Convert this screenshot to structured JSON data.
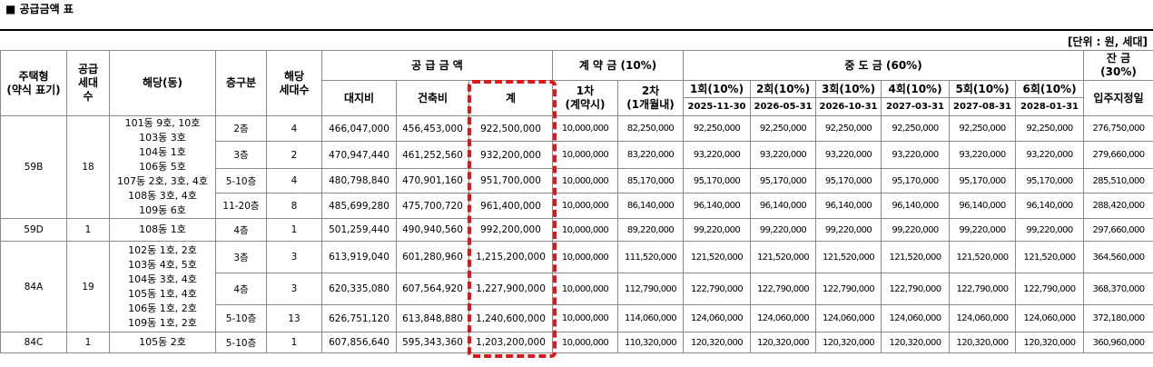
{
  "title": "■ 공급금액 표",
  "unit": "[단위 : 원, 세대]",
  "header": {
    "type": "주택형\n(약식 표기)",
    "supply": "공급\n세대\n수",
    "dong": "해당(동)",
    "floor": "층구분",
    "units": "해당\n세대수",
    "price_group": "공 급 금 액",
    "deposit_group": "계 약 금 (10%)",
    "interim_group": "중 도 금 (60%)",
    "balance_group": "잔 금\n(30%)",
    "land": "대지비",
    "building": "건축비",
    "total": "계",
    "deposit1": "1차\n(계약시)",
    "deposit2": "2차\n(1개월내)",
    "interim": [
      {
        "label": "1회(10%)",
        "date": "2025-11-30"
      },
      {
        "label": "2회(10%)",
        "date": "2026-05-31"
      },
      {
        "label": "3회(10%)",
        "date": "2026-10-31"
      },
      {
        "label": "4회(10%)",
        "date": "2027-03-31"
      },
      {
        "label": "5회(10%)",
        "date": "2027-08-31"
      },
      {
        "label": "6회(10%)",
        "date": "2028-01-31"
      }
    ],
    "balance": "입주지정일"
  },
  "groups": [
    {
      "type": "59B",
      "supply": "18",
      "dong": [
        "101동 9호, 10호",
        "103동 3호",
        "104동 1호",
        "106동 5호",
        "107동 2호, 3호, 4호",
        "108동 3호, 4호",
        "109동 6호"
      ],
      "rows": [
        [
          "2층",
          "4",
          "466,047,000",
          "456,453,000",
          "922,500,000",
          "10,000,000",
          "82,250,000",
          "92,250,000",
          "92,250,000",
          "92,250,000",
          "92,250,000",
          "92,250,000",
          "92,250,000",
          "276,750,000"
        ],
        [
          "3층",
          "2",
          "470,947,440",
          "461,252,560",
          "932,200,000",
          "10,000,000",
          "83,220,000",
          "93,220,000",
          "93,220,000",
          "93,220,000",
          "93,220,000",
          "93,220,000",
          "93,220,000",
          "279,660,000"
        ],
        [
          "5-10층",
          "4",
          "480,798,840",
          "470,901,160",
          "951,700,000",
          "10,000,000",
          "85,170,000",
          "95,170,000",
          "95,170,000",
          "95,170,000",
          "95,170,000",
          "95,170,000",
          "95,170,000",
          "285,510,000"
        ],
        [
          "11-20층",
          "8",
          "485,699,280",
          "475,700,720",
          "961,400,000",
          "10,000,000",
          "86,140,000",
          "96,140,000",
          "96,140,000",
          "96,140,000",
          "96,140,000",
          "96,140,000",
          "96,140,000",
          "288,420,000"
        ]
      ]
    },
    {
      "type": "59D",
      "supply": "1",
      "dong": [
        "108동 1호"
      ],
      "rows": [
        [
          "4층",
          "1",
          "501,259,440",
          "490,940,560",
          "992,200,000",
          "10,000,000",
          "89,220,000",
          "99,220,000",
          "99,220,000",
          "99,220,000",
          "99,220,000",
          "99,220,000",
          "99,220,000",
          "297,660,000"
        ]
      ]
    },
    {
      "type": "84A",
      "supply": "19",
      "dong": [
        "102동 1호, 2호",
        "103동 4호, 5호",
        "104동 3호, 4호",
        "105동 1호, 4호",
        "106동 1호, 2호",
        "109동 1호, 2호"
      ],
      "rows": [
        [
          "3층",
          "3",
          "613,919,040",
          "601,280,960",
          "1,215,200,000",
          "10,000,000",
          "111,520,000",
          "121,520,000",
          "121,520,000",
          "121,520,000",
          "121,520,000",
          "121,520,000",
          "121,520,000",
          "364,560,000"
        ],
        [
          "4층",
          "3",
          "620,335,080",
          "607,564,920",
          "1,227,900,000",
          "10,000,000",
          "112,790,000",
          "122,790,000",
          "122,790,000",
          "122,790,000",
          "122,790,000",
          "122,790,000",
          "122,790,000",
          "368,370,000"
        ],
        [
          "5-10층",
          "13",
          "626,751,120",
          "613,848,880",
          "1,240,600,000",
          "10,000,000",
          "114,060,000",
          "124,060,000",
          "124,060,000",
          "124,060,000",
          "124,060,000",
          "124,060,000",
          "124,060,000",
          "372,180,000"
        ]
      ]
    },
    {
      "type": "84C",
      "supply": "1",
      "dong": [
        "105동 2호"
      ],
      "rows": [
        [
          "5-10층",
          "1",
          "607,856,640",
          "595,343,360",
          "1,203,200,000",
          "10,000,000",
          "110,320,000",
          "120,320,000",
          "120,320,000",
          "120,320,000",
          "120,320,000",
          "120,320,000",
          "120,320,000",
          "360,960,000"
        ]
      ]
    }
  ]
}
